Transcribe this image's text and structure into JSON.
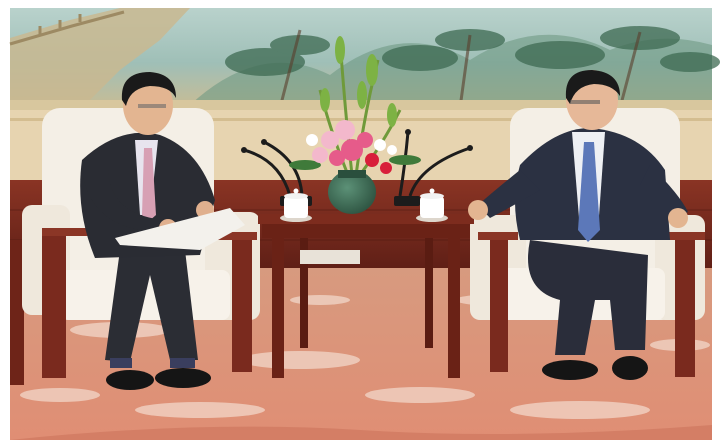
{
  "scene": {
    "subject": "photograph",
    "colors": {
      "mural_sky": "#a7c6c2",
      "mural_ground": "#c7b990",
      "wall_beige": "#e7d4b0",
      "wood_dark": "#7a2a1e",
      "carpet_red": "#d98a70",
      "carpet_pattern": "#f4dccf",
      "chair_cream": "#f4efe6",
      "suit_dark": "#2a2c33",
      "tie_pink": "#d7a0b4",
      "tie_blue": "#5c78b9",
      "flower_pink": "#e65b8a",
      "vase_green": "#3a6b52"
    }
  }
}
